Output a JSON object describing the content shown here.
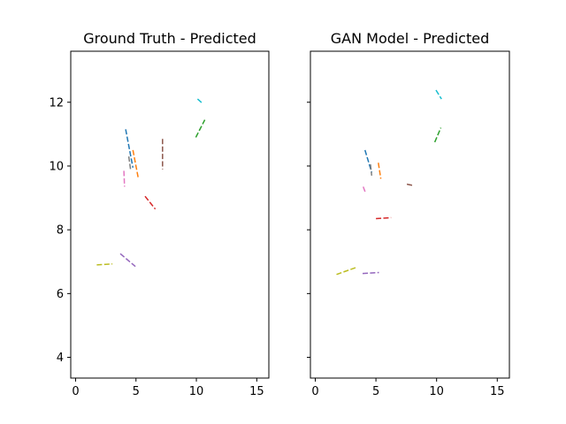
{
  "chart_data": [
    {
      "type": "line",
      "title": "Ground Truth - Predicted",
      "xlabel": "",
      "ylabel": "",
      "xlim": [
        -0.4,
        16
      ],
      "ylim": [
        3.35,
        13.6
      ],
      "xticks": [
        0,
        5,
        10,
        15
      ],
      "yticks": [
        4,
        6,
        8,
        10,
        12
      ],
      "grid": false,
      "series": [
        {
          "color": "#1f77b4",
          "x": [
            4.15,
            4.75
          ],
          "y": [
            11.15,
            9.95
          ]
        },
        {
          "color": "#ff7f0e",
          "x": [
            4.75,
            5.2
          ],
          "y": [
            10.5,
            9.6
          ]
        },
        {
          "color": "#2ca02c",
          "x": [
            9.95,
            10.7
          ],
          "y": [
            10.9,
            11.45
          ]
        },
        {
          "color": "#d62728",
          "x": [
            5.75,
            6.6
          ],
          "y": [
            9.05,
            8.65
          ]
        },
        {
          "color": "#9467bd",
          "x": [
            3.7,
            4.95
          ],
          "y": [
            7.25,
            6.85
          ]
        },
        {
          "color": "#8c564b",
          "x": [
            7.2,
            7.2
          ],
          "y": [
            10.85,
            9.9
          ]
        },
        {
          "color": "#e377c2",
          "x": [
            4.0,
            4.05
          ],
          "y": [
            9.85,
            9.35
          ]
        },
        {
          "color": "#7f7f7f",
          "x": [
            4.4,
            4.55
          ],
          "y": [
            10.3,
            9.9
          ]
        },
        {
          "color": "#bcbd22",
          "x": [
            1.75,
            3.05
          ],
          "y": [
            6.9,
            6.93
          ]
        },
        {
          "color": "#17becf",
          "x": [
            10.1,
            10.55
          ],
          "y": [
            12.1,
            11.95
          ]
        }
      ]
    },
    {
      "type": "line",
      "title": "GAN Model - Predicted",
      "xlabel": "",
      "ylabel": "",
      "xlim": [
        -0.4,
        16
      ],
      "ylim": [
        3.35,
        13.6
      ],
      "xticks": [
        0,
        5,
        10,
        15
      ],
      "yticks": [
        4,
        6,
        8,
        10,
        12
      ],
      "grid": false,
      "series": [
        {
          "color": "#1f77b4",
          "x": [
            4.1,
            4.65
          ],
          "y": [
            10.5,
            9.8
          ]
        },
        {
          "color": "#ff7f0e",
          "x": [
            5.2,
            5.4
          ],
          "y": [
            10.1,
            9.6
          ]
        },
        {
          "color": "#2ca02c",
          "x": [
            9.85,
            10.35
          ],
          "y": [
            10.75,
            11.2
          ]
        },
        {
          "color": "#d62728",
          "x": [
            5.0,
            6.25
          ],
          "y": [
            8.35,
            8.38
          ]
        },
        {
          "color": "#9467bd",
          "x": [
            3.9,
            5.25
          ],
          "y": [
            6.63,
            6.66
          ]
        },
        {
          "color": "#8c564b",
          "x": [
            7.55,
            8.15
          ],
          "y": [
            9.43,
            9.38
          ]
        },
        {
          "color": "#e377c2",
          "x": [
            3.95,
            4.15
          ],
          "y": [
            9.35,
            9.15
          ]
        },
        {
          "color": "#7f7f7f",
          "x": [
            4.55,
            4.65
          ],
          "y": [
            10.05,
            9.7
          ]
        },
        {
          "color": "#bcbd22",
          "x": [
            1.75,
            3.45
          ],
          "y": [
            6.6,
            6.83
          ]
        },
        {
          "color": "#17becf",
          "x": [
            9.95,
            10.4
          ],
          "y": [
            12.38,
            12.1
          ]
        }
      ]
    }
  ]
}
